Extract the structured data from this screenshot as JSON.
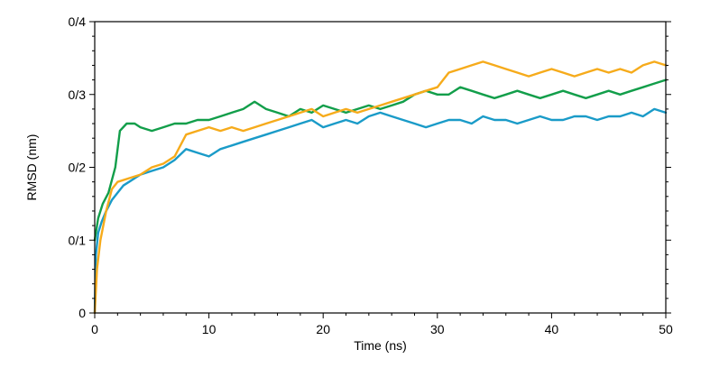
{
  "chart_data": {
    "type": "line",
    "title": "",
    "xlabel": "Time (ns)",
    "ylabel": "RMSD (nm)",
    "xlim": [
      0,
      50
    ],
    "ylim": [
      0,
      0.4
    ],
    "x_ticks": [
      0,
      10,
      20,
      30,
      40,
      50
    ],
    "x_tick_labels": [
      "0",
      "10",
      "20",
      "30",
      "40",
      "50"
    ],
    "y_ticks": [
      0,
      0.1,
      0.2,
      0.3,
      0.4
    ],
    "y_tick_labels": [
      "0",
      "0/1",
      "0/2",
      "0/3",
      "0/4"
    ],
    "grid": false,
    "legend": "none",
    "series": [
      {
        "color": "#1a9bc8",
        "points": [
          [
            0,
            0.0
          ],
          [
            0.1,
            0.08
          ],
          [
            0.3,
            0.11
          ],
          [
            0.6,
            0.125
          ],
          [
            1,
            0.14
          ],
          [
            1.5,
            0.155
          ],
          [
            2,
            0.165
          ],
          [
            2.5,
            0.175
          ],
          [
            3,
            0.18
          ],
          [
            3.5,
            0.185
          ],
          [
            4,
            0.19
          ],
          [
            5,
            0.195
          ],
          [
            6,
            0.2
          ],
          [
            7,
            0.21
          ],
          [
            8,
            0.225
          ],
          [
            9,
            0.22
          ],
          [
            10,
            0.215
          ],
          [
            11,
            0.225
          ],
          [
            12,
            0.23
          ],
          [
            13,
            0.235
          ],
          [
            14,
            0.24
          ],
          [
            15,
            0.245
          ],
          [
            16,
            0.25
          ],
          [
            17,
            0.255
          ],
          [
            18,
            0.26
          ],
          [
            19,
            0.265
          ],
          [
            20,
            0.255
          ],
          [
            21,
            0.26
          ],
          [
            22,
            0.265
          ],
          [
            23,
            0.26
          ],
          [
            24,
            0.27
          ],
          [
            25,
            0.275
          ],
          [
            26,
            0.27
          ],
          [
            27,
            0.265
          ],
          [
            28,
            0.26
          ],
          [
            29,
            0.255
          ],
          [
            30,
            0.26
          ],
          [
            31,
            0.265
          ],
          [
            32,
            0.265
          ],
          [
            33,
            0.26
          ],
          [
            34,
            0.27
          ],
          [
            35,
            0.265
          ],
          [
            36,
            0.265
          ],
          [
            37,
            0.26
          ],
          [
            38,
            0.265
          ],
          [
            39,
            0.27
          ],
          [
            40,
            0.265
          ],
          [
            41,
            0.265
          ],
          [
            42,
            0.27
          ],
          [
            43,
            0.27
          ],
          [
            44,
            0.265
          ],
          [
            45,
            0.27
          ],
          [
            46,
            0.27
          ],
          [
            47,
            0.275
          ],
          [
            48,
            0.27
          ],
          [
            49,
            0.28
          ],
          [
            50,
            0.275
          ]
        ]
      },
      {
        "color": "#129e4a",
        "points": [
          [
            0,
            0.1
          ],
          [
            0.3,
            0.13
          ],
          [
            0.7,
            0.15
          ],
          [
            1.2,
            0.165
          ],
          [
            1.8,
            0.2
          ],
          [
            2.2,
            0.25
          ],
          [
            2.8,
            0.26
          ],
          [
            3.5,
            0.26
          ],
          [
            4,
            0.255
          ],
          [
            5,
            0.25
          ],
          [
            6,
            0.255
          ],
          [
            7,
            0.26
          ],
          [
            8,
            0.26
          ],
          [
            9,
            0.265
          ],
          [
            10,
            0.265
          ],
          [
            11,
            0.27
          ],
          [
            12,
            0.275
          ],
          [
            13,
            0.28
          ],
          [
            14,
            0.29
          ],
          [
            15,
            0.28
          ],
          [
            16,
            0.275
          ],
          [
            17,
            0.27
          ],
          [
            18,
            0.28
          ],
          [
            19,
            0.275
          ],
          [
            20,
            0.285
          ],
          [
            21,
            0.28
          ],
          [
            22,
            0.275
          ],
          [
            23,
            0.28
          ],
          [
            24,
            0.285
          ],
          [
            25,
            0.28
          ],
          [
            26,
            0.285
          ],
          [
            27,
            0.29
          ],
          [
            28,
            0.3
          ],
          [
            29,
            0.305
          ],
          [
            30,
            0.3
          ],
          [
            31,
            0.3
          ],
          [
            32,
            0.31
          ],
          [
            33,
            0.305
          ],
          [
            34,
            0.3
          ],
          [
            35,
            0.295
          ],
          [
            36,
            0.3
          ],
          [
            37,
            0.305
          ],
          [
            38,
            0.3
          ],
          [
            39,
            0.295
          ],
          [
            40,
            0.3
          ],
          [
            41,
            0.305
          ],
          [
            42,
            0.3
          ],
          [
            43,
            0.295
          ],
          [
            44,
            0.3
          ],
          [
            45,
            0.305
          ],
          [
            46,
            0.3
          ],
          [
            47,
            0.305
          ],
          [
            48,
            0.31
          ],
          [
            49,
            0.315
          ],
          [
            50,
            0.32
          ]
        ]
      },
      {
        "color": "#f6ab1b",
        "points": [
          [
            0,
            0.0
          ],
          [
            0.2,
            0.06
          ],
          [
            0.5,
            0.1
          ],
          [
            1,
            0.14
          ],
          [
            1.5,
            0.17
          ],
          [
            2,
            0.18
          ],
          [
            3,
            0.185
          ],
          [
            4,
            0.19
          ],
          [
            5,
            0.2
          ],
          [
            6,
            0.205
          ],
          [
            7,
            0.215
          ],
          [
            8,
            0.245
          ],
          [
            9,
            0.25
          ],
          [
            10,
            0.255
          ],
          [
            11,
            0.25
          ],
          [
            12,
            0.255
          ],
          [
            13,
            0.25
          ],
          [
            14,
            0.255
          ],
          [
            15,
            0.26
          ],
          [
            16,
            0.265
          ],
          [
            17,
            0.27
          ],
          [
            18,
            0.275
          ],
          [
            19,
            0.28
          ],
          [
            20,
            0.27
          ],
          [
            21,
            0.275
          ],
          [
            22,
            0.28
          ],
          [
            23,
            0.275
          ],
          [
            24,
            0.28
          ],
          [
            25,
            0.285
          ],
          [
            26,
            0.29
          ],
          [
            27,
            0.295
          ],
          [
            28,
            0.3
          ],
          [
            29,
            0.305
          ],
          [
            30,
            0.31
          ],
          [
            31,
            0.33
          ],
          [
            32,
            0.335
          ],
          [
            33,
            0.34
          ],
          [
            34,
            0.345
          ],
          [
            35,
            0.34
          ],
          [
            36,
            0.335
          ],
          [
            37,
            0.33
          ],
          [
            38,
            0.325
          ],
          [
            39,
            0.33
          ],
          [
            40,
            0.335
          ],
          [
            41,
            0.33
          ],
          [
            42,
            0.325
          ],
          [
            43,
            0.33
          ],
          [
            44,
            0.335
          ],
          [
            45,
            0.33
          ],
          [
            46,
            0.335
          ],
          [
            47,
            0.33
          ],
          [
            48,
            0.34
          ],
          [
            49,
            0.345
          ],
          [
            50,
            0.34
          ]
        ]
      }
    ]
  }
}
